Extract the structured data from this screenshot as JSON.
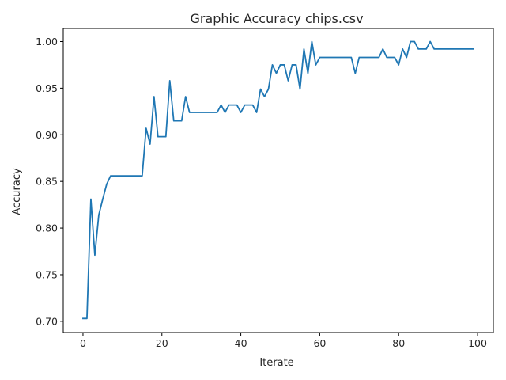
{
  "chart_data": {
    "type": "line",
    "title": "Graphic Accuracy chips.csv",
    "xlabel": "Iterate",
    "ylabel": "Accuracy",
    "xlim": [
      -5,
      104
    ],
    "ylim": [
      0.688,
      1.014
    ],
    "xticks": [
      0,
      20,
      40,
      60,
      80,
      100
    ],
    "xtick_labels": [
      "0",
      "20",
      "40",
      "60",
      "80",
      "100"
    ],
    "yticks": [
      0.7,
      0.75,
      0.8,
      0.85,
      0.9,
      0.95,
      1.0
    ],
    "ytick_labels": [
      "0.70",
      "0.75",
      "0.80",
      "0.85",
      "0.90",
      "0.95",
      "1.00"
    ],
    "grid": false,
    "series": [
      {
        "color": "#1f77b4",
        "x": [
          0,
          1,
          2,
          3,
          4,
          5,
          6,
          7,
          8,
          9,
          10,
          11,
          12,
          13,
          14,
          15,
          16,
          17,
          18,
          19,
          20,
          21,
          22,
          23,
          24,
          25,
          26,
          27,
          28,
          29,
          30,
          31,
          32,
          33,
          34,
          35,
          36,
          37,
          38,
          39,
          40,
          41,
          42,
          43,
          44,
          45,
          46,
          47,
          48,
          49,
          50,
          51,
          52,
          53,
          54,
          55,
          56,
          57,
          58,
          59,
          60,
          61,
          62,
          63,
          64,
          65,
          66,
          67,
          68,
          69,
          70,
          71,
          72,
          73,
          74,
          75,
          76,
          77,
          78,
          79,
          80,
          81,
          82,
          83,
          84,
          85,
          86,
          87,
          88,
          89,
          90,
          91,
          92,
          93,
          94,
          95,
          96,
          97,
          98,
          99
        ],
        "values": [
          0.703,
          0.703,
          0.831,
          0.771,
          0.814,
          0.831,
          0.847,
          0.856,
          0.856,
          0.856,
          0.856,
          0.856,
          0.856,
          0.856,
          0.856,
          0.856,
          0.907,
          0.89,
          0.941,
          0.898,
          0.898,
          0.898,
          0.958,
          0.915,
          0.915,
          0.915,
          0.941,
          0.924,
          0.924,
          0.924,
          0.924,
          0.924,
          0.924,
          0.924,
          0.924,
          0.932,
          0.924,
          0.932,
          0.932,
          0.932,
          0.924,
          0.932,
          0.932,
          0.932,
          0.924,
          0.949,
          0.941,
          0.949,
          0.975,
          0.966,
          0.975,
          0.975,
          0.958,
          0.975,
          0.975,
          0.949,
          0.992,
          0.966,
          1.0,
          0.975,
          0.983,
          0.983,
          0.983,
          0.983,
          0.983,
          0.983,
          0.983,
          0.983,
          0.983,
          0.966,
          0.983,
          0.983,
          0.983,
          0.983,
          0.983,
          0.983,
          0.992,
          0.983,
          0.983,
          0.983,
          0.975,
          0.992,
          0.983,
          1.0,
          1.0,
          0.992,
          0.992,
          0.992,
          1.0,
          0.992,
          0.992,
          0.992,
          0.992,
          0.992,
          0.992,
          0.992,
          0.992,
          0.992,
          0.992,
          0.992
        ]
      }
    ]
  }
}
